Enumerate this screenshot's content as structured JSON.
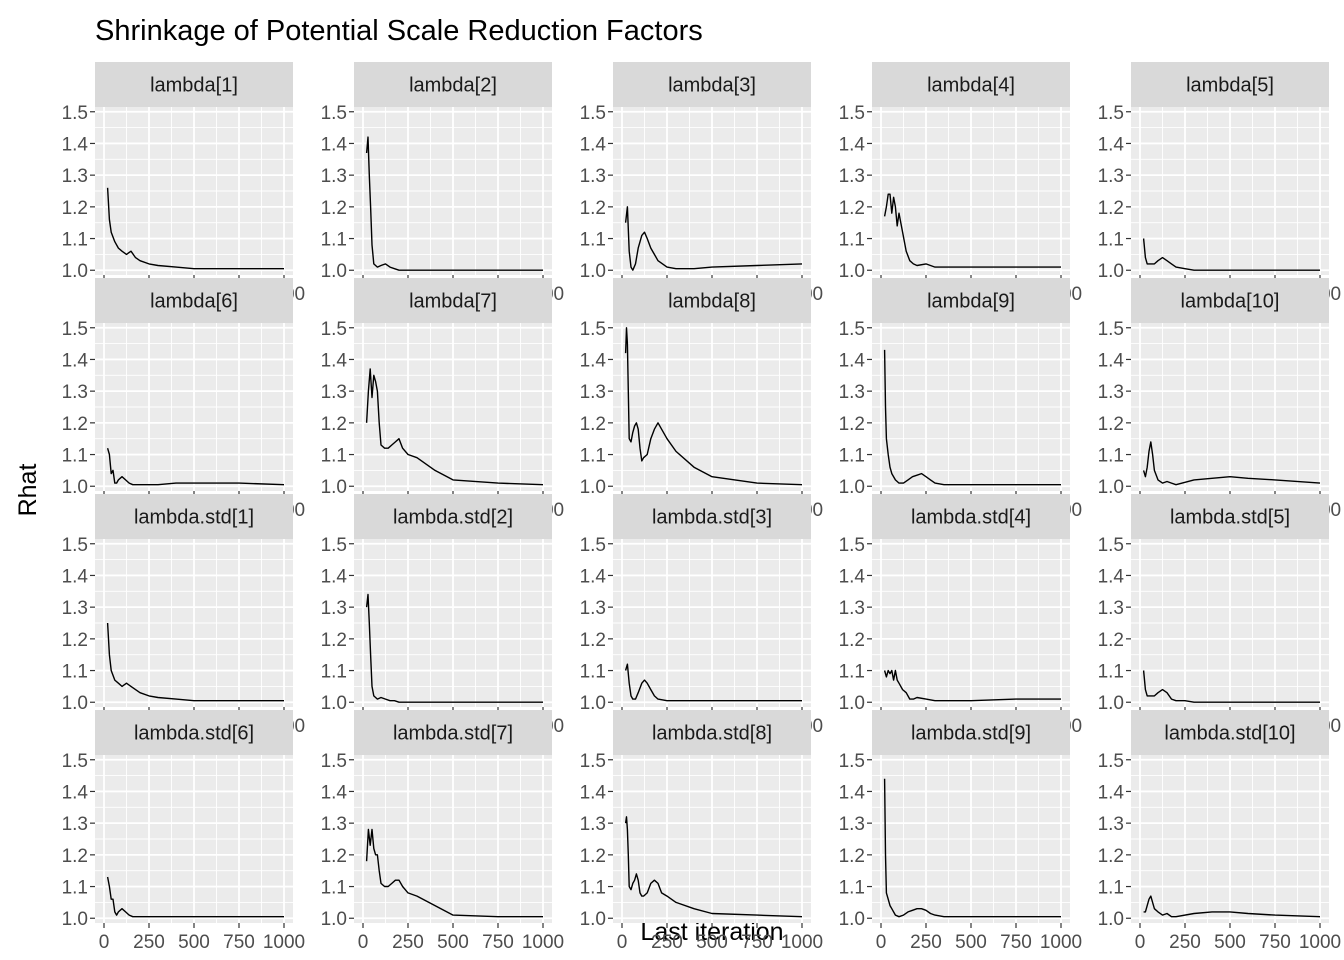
{
  "chart_data": {
    "type": "line",
    "title": "Shrinkage of Potential Scale Reduction Factors",
    "xlabel": "Last iteration",
    "ylabel": "Rhat",
    "xlim": [
      0,
      1000
    ],
    "ylim": [
      0.985,
      1.515
    ],
    "x_ticks": [
      0,
      250,
      500,
      750,
      1000
    ],
    "x_tick_labels": [
      "0",
      "250",
      "500",
      "750",
      "1000"
    ],
    "y_ticks": [
      1.0,
      1.1,
      1.2,
      1.3,
      1.4,
      1.5
    ],
    "y_tick_labels": [
      "1.0",
      "1.1",
      "1.2",
      "1.3",
      "1.4",
      "1.5"
    ],
    "grid": true,
    "facets": [
      {
        "label": "lambda[1]",
        "x": [
          20,
          30,
          40,
          60,
          80,
          100,
          125,
          150,
          175,
          200,
          250,
          300,
          400,
          500,
          750,
          1000
        ],
        "y": [
          1.26,
          1.16,
          1.12,
          1.09,
          1.07,
          1.06,
          1.05,
          1.06,
          1.04,
          1.03,
          1.02,
          1.015,
          1.01,
          1.005,
          1.005,
          1.005
        ]
      },
      {
        "label": "lambda[2]",
        "x": [
          20,
          28,
          35,
          42,
          50,
          60,
          80,
          100,
          125,
          150,
          175,
          200,
          300,
          500,
          750,
          1000
        ],
        "y": [
          1.37,
          1.42,
          1.3,
          1.2,
          1.08,
          1.02,
          1.01,
          1.015,
          1.02,
          1.01,
          1.005,
          1.0,
          1.0,
          1.0,
          1.0,
          1.0
        ]
      },
      {
        "label": "lambda[3]",
        "x": [
          20,
          30,
          40,
          50,
          60,
          75,
          90,
          110,
          125,
          140,
          160,
          180,
          200,
          250,
          300,
          400,
          500,
          750,
          1000
        ],
        "y": [
          1.15,
          1.2,
          1.06,
          1.01,
          1.0,
          1.02,
          1.07,
          1.11,
          1.12,
          1.1,
          1.07,
          1.05,
          1.03,
          1.01,
          1.005,
          1.005,
          1.01,
          1.015,
          1.02
        ]
      },
      {
        "label": "lambda[4]",
        "x": [
          20,
          30,
          40,
          50,
          60,
          70,
          80,
          90,
          100,
          120,
          140,
          160,
          180,
          200,
          250,
          300,
          400,
          500,
          750,
          1000
        ],
        "y": [
          1.17,
          1.2,
          1.24,
          1.24,
          1.18,
          1.23,
          1.2,
          1.14,
          1.18,
          1.12,
          1.06,
          1.03,
          1.02,
          1.015,
          1.02,
          1.01,
          1.01,
          1.01,
          1.01,
          1.01
        ]
      },
      {
        "label": "lambda[5]",
        "x": [
          20,
          30,
          40,
          60,
          80,
          100,
          125,
          150,
          175,
          200,
          250,
          300,
          500,
          750,
          1000
        ],
        "y": [
          1.1,
          1.04,
          1.02,
          1.02,
          1.02,
          1.03,
          1.04,
          1.03,
          1.02,
          1.01,
          1.005,
          1.0,
          1.0,
          1.0,
          1.0
        ]
      },
      {
        "label": "lambda[6]",
        "x": [
          20,
          30,
          40,
          50,
          60,
          70,
          80,
          100,
          120,
          140,
          160,
          200,
          300,
          400,
          500,
          750,
          1000
        ],
        "y": [
          1.12,
          1.1,
          1.04,
          1.05,
          1.01,
          1.01,
          1.02,
          1.03,
          1.02,
          1.01,
          1.005,
          1.005,
          1.005,
          1.01,
          1.01,
          1.01,
          1.005
        ]
      },
      {
        "label": "lambda[7]",
        "x": [
          20,
          30,
          40,
          50,
          60,
          70,
          80,
          90,
          100,
          120,
          140,
          160,
          180,
          200,
          220,
          250,
          300,
          400,
          500,
          750,
          1000
        ],
        "y": [
          1.2,
          1.3,
          1.37,
          1.28,
          1.35,
          1.33,
          1.3,
          1.2,
          1.13,
          1.12,
          1.12,
          1.13,
          1.14,
          1.15,
          1.12,
          1.1,
          1.09,
          1.05,
          1.02,
          1.01,
          1.005
        ]
      },
      {
        "label": "lambda[8]",
        "x": [
          20,
          25,
          30,
          35,
          40,
          50,
          60,
          70,
          80,
          90,
          100,
          110,
          120,
          140,
          160,
          180,
          200,
          220,
          250,
          300,
          400,
          500,
          750,
          1000
        ],
        "y": [
          1.42,
          1.5,
          1.45,
          1.3,
          1.15,
          1.14,
          1.17,
          1.19,
          1.2,
          1.18,
          1.12,
          1.08,
          1.09,
          1.1,
          1.15,
          1.18,
          1.2,
          1.18,
          1.15,
          1.11,
          1.06,
          1.03,
          1.01,
          1.005
        ]
      },
      {
        "label": "lambda[9]",
        "x": [
          20,
          25,
          30,
          40,
          50,
          60,
          80,
          100,
          125,
          150,
          175,
          200,
          225,
          250,
          275,
          300,
          350,
          400,
          500,
          750,
          1000
        ],
        "y": [
          1.43,
          1.25,
          1.15,
          1.1,
          1.06,
          1.04,
          1.02,
          1.01,
          1.01,
          1.02,
          1.03,
          1.035,
          1.04,
          1.03,
          1.02,
          1.01,
          1.005,
          1.005,
          1.005,
          1.005,
          1.005
        ]
      },
      {
        "label": "lambda[10]",
        "x": [
          20,
          30,
          40,
          50,
          60,
          70,
          80,
          100,
          125,
          150,
          175,
          200,
          300,
          400,
          500,
          600,
          750,
          1000
        ],
        "y": [
          1.05,
          1.03,
          1.06,
          1.11,
          1.14,
          1.1,
          1.05,
          1.02,
          1.01,
          1.015,
          1.01,
          1.005,
          1.02,
          1.025,
          1.03,
          1.025,
          1.02,
          1.01
        ]
      },
      {
        "label": "lambda.std[1]",
        "x": [
          20,
          30,
          40,
          60,
          80,
          100,
          125,
          150,
          175,
          200,
          250,
          300,
          400,
          500,
          750,
          1000
        ],
        "y": [
          1.25,
          1.15,
          1.1,
          1.07,
          1.06,
          1.05,
          1.06,
          1.05,
          1.04,
          1.03,
          1.02,
          1.015,
          1.01,
          1.005,
          1.005,
          1.005
        ]
      },
      {
        "label": "lambda.std[2]",
        "x": [
          20,
          28,
          35,
          42,
          50,
          60,
          80,
          100,
          125,
          150,
          175,
          200,
          300,
          500,
          750,
          1000
        ],
        "y": [
          1.3,
          1.34,
          1.25,
          1.15,
          1.05,
          1.02,
          1.01,
          1.015,
          1.01,
          1.005,
          1.005,
          1.0,
          1.0,
          1.0,
          1.0,
          1.0
        ]
      },
      {
        "label": "lambda.std[3]",
        "x": [
          20,
          30,
          40,
          50,
          60,
          75,
          90,
          110,
          125,
          140,
          160,
          180,
          200,
          250,
          300,
          400,
          500,
          750,
          1000
        ],
        "y": [
          1.1,
          1.12,
          1.06,
          1.02,
          1.01,
          1.01,
          1.03,
          1.06,
          1.07,
          1.06,
          1.04,
          1.02,
          1.01,
          1.005,
          1.005,
          1.005,
          1.005,
          1.005,
          1.005
        ]
      },
      {
        "label": "lambda.std[4]",
        "x": [
          20,
          30,
          40,
          50,
          60,
          70,
          80,
          90,
          100,
          120,
          140,
          160,
          180,
          200,
          250,
          300,
          400,
          500,
          750,
          1000
        ],
        "y": [
          1.1,
          1.08,
          1.1,
          1.09,
          1.1,
          1.07,
          1.1,
          1.07,
          1.06,
          1.04,
          1.03,
          1.01,
          1.01,
          1.015,
          1.01,
          1.005,
          1.005,
          1.005,
          1.01,
          1.01
        ]
      },
      {
        "label": "lambda.std[5]",
        "x": [
          20,
          30,
          40,
          60,
          80,
          100,
          125,
          150,
          175,
          200,
          250,
          300,
          500,
          750,
          1000
        ],
        "y": [
          1.1,
          1.04,
          1.02,
          1.02,
          1.02,
          1.03,
          1.04,
          1.03,
          1.01,
          1.005,
          1.005,
          1.0,
          1.0,
          1.0,
          1.0
        ]
      },
      {
        "label": "lambda.std[6]",
        "x": [
          20,
          30,
          40,
          50,
          60,
          70,
          80,
          100,
          120,
          140,
          160,
          200,
          300,
          400,
          500,
          750,
          1000
        ],
        "y": [
          1.13,
          1.1,
          1.06,
          1.06,
          1.02,
          1.01,
          1.02,
          1.03,
          1.02,
          1.01,
          1.005,
          1.005,
          1.005,
          1.005,
          1.005,
          1.005,
          1.005
        ]
      },
      {
        "label": "lambda.std[7]",
        "x": [
          20,
          30,
          40,
          50,
          60,
          70,
          80,
          90,
          100,
          120,
          140,
          160,
          180,
          200,
          220,
          250,
          300,
          400,
          500,
          750,
          1000
        ],
        "y": [
          1.18,
          1.28,
          1.23,
          1.28,
          1.22,
          1.2,
          1.2,
          1.15,
          1.11,
          1.1,
          1.1,
          1.11,
          1.12,
          1.12,
          1.1,
          1.08,
          1.07,
          1.04,
          1.01,
          1.005,
          1.005
        ]
      },
      {
        "label": "lambda.std[8]",
        "x": [
          20,
          25,
          30,
          35,
          40,
          50,
          60,
          70,
          80,
          90,
          100,
          110,
          120,
          140,
          160,
          180,
          200,
          220,
          250,
          300,
          400,
          500,
          750,
          1000
        ],
        "y": [
          1.3,
          1.32,
          1.28,
          1.2,
          1.1,
          1.09,
          1.11,
          1.12,
          1.14,
          1.12,
          1.08,
          1.07,
          1.07,
          1.08,
          1.11,
          1.12,
          1.11,
          1.08,
          1.07,
          1.05,
          1.03,
          1.015,
          1.01,
          1.005
        ]
      },
      {
        "label": "lambda.std[9]",
        "x": [
          20,
          25,
          30,
          40,
          50,
          60,
          80,
          100,
          125,
          150,
          175,
          200,
          225,
          250,
          275,
          300,
          350,
          400,
          500,
          750,
          1000
        ],
        "y": [
          1.44,
          1.2,
          1.08,
          1.06,
          1.04,
          1.03,
          1.01,
          1.005,
          1.01,
          1.02,
          1.025,
          1.03,
          1.03,
          1.025,
          1.015,
          1.01,
          1.005,
          1.005,
          1.005,
          1.005,
          1.005
        ]
      },
      {
        "label": "lambda.std[10]",
        "x": [
          20,
          30,
          40,
          50,
          60,
          70,
          80,
          100,
          125,
          150,
          175,
          200,
          300,
          400,
          500,
          600,
          750,
          1000
        ],
        "y": [
          1.02,
          1.02,
          1.04,
          1.06,
          1.07,
          1.05,
          1.03,
          1.02,
          1.01,
          1.015,
          1.005,
          1.005,
          1.015,
          1.02,
          1.02,
          1.015,
          1.01,
          1.005
        ]
      }
    ],
    "style": {
      "panel_bg": "#ebebeb",
      "strip_bg": "#d9d9d9",
      "grid_color": "#ffffff",
      "line_color": "#000000",
      "tick_text_color": "#4d4d4d"
    }
  }
}
